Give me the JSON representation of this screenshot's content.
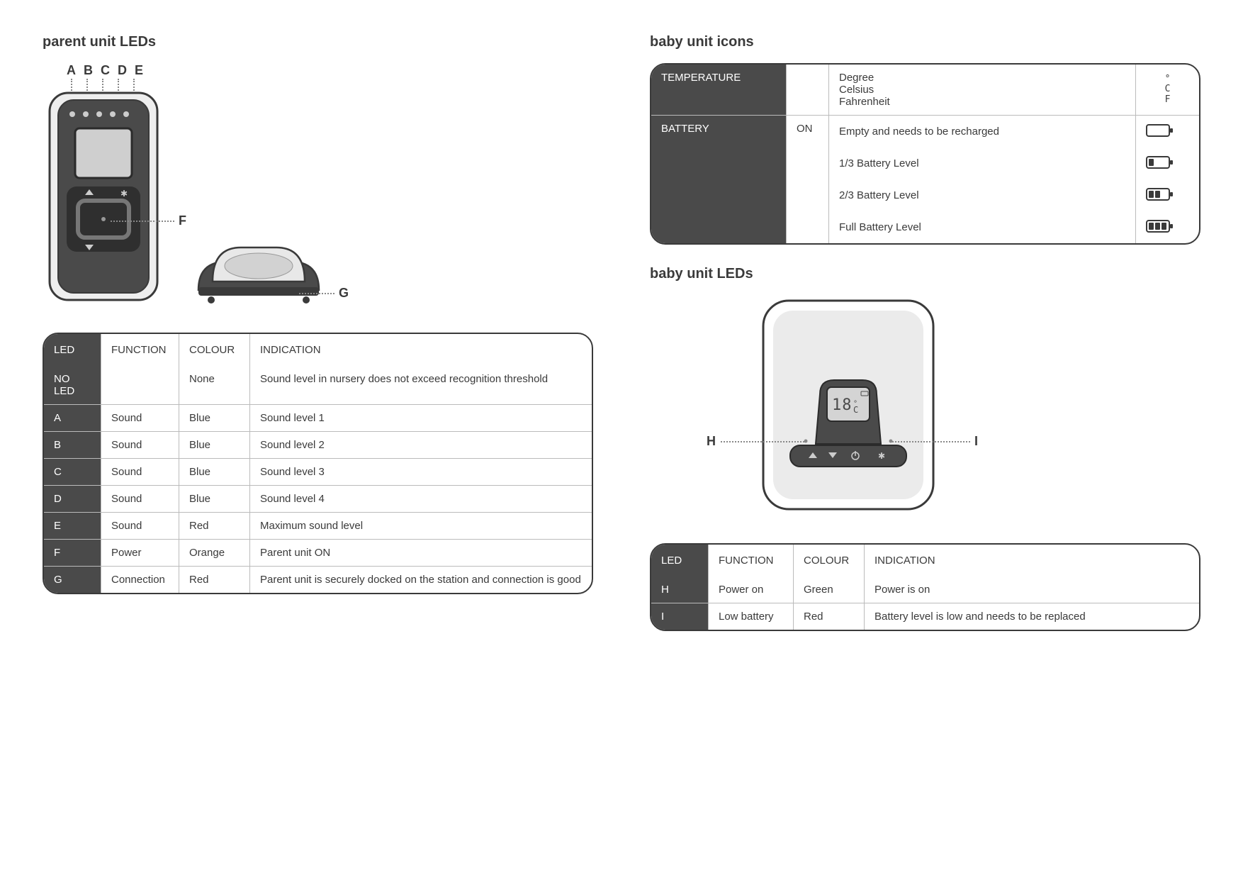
{
  "left": {
    "title": "parent unit LEDs",
    "topCallouts": [
      "A",
      "B",
      "C",
      "D",
      "E"
    ],
    "calloutF": "F",
    "calloutG": "G",
    "table": {
      "headers": [
        "LED",
        "FUNCTION",
        "COLOUR",
        "INDICATION"
      ],
      "rows": [
        [
          "NO LED",
          "",
          "None",
          "Sound level in nursery does not exceed recognition threshold"
        ],
        [
          "A",
          "Sound",
          "Blue",
          "Sound level 1"
        ],
        [
          "B",
          "Sound",
          "Blue",
          "Sound level 2"
        ],
        [
          "C",
          "Sound",
          "Blue",
          "Sound level 3"
        ],
        [
          "D",
          "Sound",
          "Blue",
          "Sound level 4"
        ],
        [
          "E",
          "Sound",
          "Red",
          "Maximum sound level"
        ],
        [
          "F",
          "Power",
          "Orange",
          "Parent unit ON"
        ],
        [
          "G",
          "Connection",
          "Red",
          "Parent unit is securely docked on the station and connection is good"
        ]
      ]
    }
  },
  "right": {
    "iconsTitle": "baby unit icons",
    "iconsTable": {
      "rows": [
        {
          "cat": "TEMPERATURE",
          "state": "",
          "items": [
            {
              "label": "Degree",
              "icon": "deg"
            },
            {
              "label": "Celsius",
              "icon": "celsius"
            },
            {
              "label": "Fahrenheit",
              "icon": "fahrenheit"
            }
          ],
          "stacked": true
        },
        {
          "cat": "BATTERY",
          "state": "ON",
          "items": [
            {
              "label": "Empty and needs to be recharged",
              "icon": "batt0"
            },
            {
              "label": "1/3 Battery Level",
              "icon": "batt1"
            },
            {
              "label": "2/3 Battery Level",
              "icon": "batt2"
            },
            {
              "label": "Full Battery Level",
              "icon": "batt3"
            }
          ],
          "stacked": false
        }
      ]
    },
    "ledsTitle": "baby unit LEDs",
    "calloutH": "H",
    "calloutI": "I",
    "display": "18°C",
    "ledsTable": {
      "headers": [
        "LED",
        "FUNCTION",
        "COLOUR",
        "INDICATION"
      ],
      "rows": [
        [
          "H",
          "Power on",
          "Green",
          "Power is on"
        ],
        [
          "I",
          "Low battery",
          "Red",
          "Battery level is low and needs to be replaced"
        ]
      ]
    }
  },
  "colors": {
    "dark": "#4a4a4a",
    "stroke": "#3a3a3a",
    "lightgrey": "#d9d9d9",
    "midgrey": "#9a9a9a"
  }
}
